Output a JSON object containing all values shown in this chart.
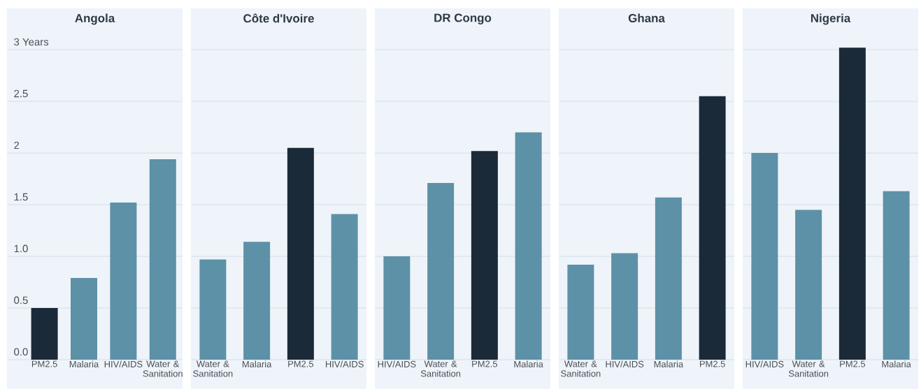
{
  "chart_data": [
    {
      "type": "bar",
      "title": "Angola",
      "categories": [
        "PM2.5",
        "Malaria",
        "HIV/AIDS",
        "Water & Sanitation"
      ],
      "values": [
        0.5,
        0.79,
        1.52,
        1.94
      ],
      "colors": [
        "#1b2a38",
        "#5d91a7",
        "#5d91a7",
        "#5d91a7"
      ],
      "ylim": [
        0,
        3.4
      ],
      "yticks": [
        {
          "value": 0,
          "label": "0.0"
        },
        0.5,
        {
          "value": 1,
          "label": "1.0"
        },
        1.5,
        2,
        2.5,
        {
          "value": 3,
          "label": "3 Years"
        }
      ],
      "grid": "y"
    },
    {
      "type": "bar",
      "title": "Côte d'Ivoire",
      "categories": [
        "Water & Sanitation",
        "Malaria",
        "PM2.5",
        "HIV/AIDS"
      ],
      "values": [
        0.97,
        1.14,
        2.05,
        1.41
      ],
      "colors": [
        "#5d91a7",
        "#5d91a7",
        "#1b2a38",
        "#5d91a7"
      ],
      "ylim": [
        0,
        3.4
      ],
      "yticks": [
        0,
        0.5,
        1,
        1.5,
        2,
        2.5,
        3
      ],
      "grid": "y",
      "tick_labels": "x"
    },
    {
      "type": "bar",
      "title": "DR Congo",
      "categories": [
        "HIV/AIDS",
        "Water & Sanitation",
        "PM2.5",
        "Malaria"
      ],
      "values": [
        1.0,
        1.71,
        2.02,
        2.2
      ],
      "colors": [
        "#5d91a7",
        "#5d91a7",
        "#1b2a38",
        "#5d91a7"
      ],
      "ylim": [
        0,
        3.4
      ],
      "yticks": [
        0,
        0.5,
        1,
        1.5,
        2,
        2.5,
        3
      ],
      "grid": "y",
      "tick_labels": "x"
    },
    {
      "type": "bar",
      "title": "Ghana",
      "categories": [
        "Water & Sanitation",
        "HIV/AIDS",
        "Malaria",
        "PM2.5"
      ],
      "values": [
        0.92,
        1.03,
        1.57,
        2.55
      ],
      "colors": [
        "#5d91a7",
        "#5d91a7",
        "#5d91a7",
        "#1b2a38"
      ],
      "ylim": [
        0,
        3.4
      ],
      "yticks": [
        0,
        0.5,
        1,
        1.5,
        2,
        2.5,
        3
      ],
      "grid": "y",
      "tick_labels": "x"
    },
    {
      "type": "bar",
      "title": "Nigeria",
      "categories": [
        "HIV/AIDS",
        "Water & Sanitation",
        "PM2.5",
        "Malaria"
      ],
      "values": [
        2.0,
        1.45,
        3.02,
        1.63
      ],
      "colors": [
        "#5d91a7",
        "#5d91a7",
        "#1b2a38",
        "#5d91a7"
      ],
      "ylim": [
        0,
        3.4
      ],
      "yticks": [
        0,
        0.5,
        1,
        1.5,
        2,
        2.5,
        3
      ],
      "grid": "y",
      "tick_labels": "x"
    }
  ]
}
